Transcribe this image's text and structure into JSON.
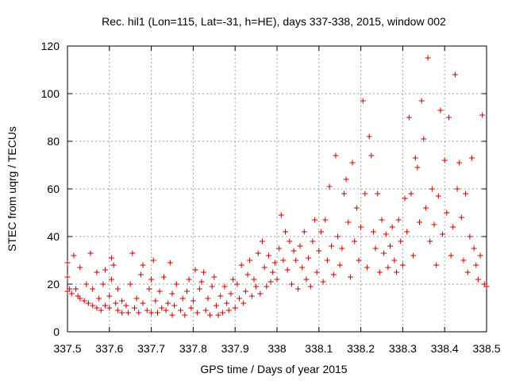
{
  "chart_data": {
    "type": "scatter",
    "title": "Rec. hil1 (Lon=115, Lat=-31, h=HE), days 337-338, 2015, window 002",
    "xlabel": "GPS time / Days of year 2015",
    "ylabel": "STEC from uqrg / TECUs",
    "xlim": [
      337.5,
      338.5
    ],
    "ylim": [
      0,
      120
    ],
    "xticks": [
      337.5,
      337.6,
      337.7,
      337.8,
      337.9,
      338.0,
      338.1,
      338.2,
      338.3,
      338.4,
      338.5
    ],
    "xtick_labels": [
      "337.5",
      "337.6",
      "337.7",
      "337.8",
      "337.9",
      "338",
      "338.1",
      "338.2",
      "338.3",
      "338.4",
      "338.5"
    ],
    "yticks": [
      0,
      20,
      40,
      60,
      80,
      100,
      120
    ],
    "ytick_labels": [
      "0",
      "20",
      "40",
      "60",
      "80",
      "100",
      "120"
    ],
    "grid": true,
    "marker": "plus",
    "color": "#cc0000",
    "points": [
      [
        337.5,
        17
      ],
      [
        337.5,
        23
      ],
      [
        337.5,
        29
      ],
      [
        337.505,
        18
      ],
      [
        337.51,
        16
      ],
      [
        337.515,
        32
      ],
      [
        337.52,
        18
      ],
      [
        337.525,
        15
      ],
      [
        337.53,
        14
      ],
      [
        337.53,
        27
      ],
      [
        337.54,
        13
      ],
      [
        337.545,
        20
      ],
      [
        337.55,
        12
      ],
      [
        337.555,
        33
      ],
      [
        337.56,
        18
      ],
      [
        337.56,
        11
      ],
      [
        337.57,
        25
      ],
      [
        337.57,
        10
      ],
      [
        337.575,
        14
      ],
      [
        337.58,
        9
      ],
      [
        337.585,
        20
      ],
      [
        337.59,
        26
      ],
      [
        337.59,
        11
      ],
      [
        337.6,
        10
      ],
      [
        337.6,
        15
      ],
      [
        337.605,
        22
      ],
      [
        337.605,
        31
      ],
      [
        337.61,
        28
      ],
      [
        337.615,
        12
      ],
      [
        337.62,
        9
      ],
      [
        337.62,
        18
      ],
      [
        337.63,
        8
      ],
      [
        337.63,
        13
      ],
      [
        337.64,
        11
      ],
      [
        337.645,
        8
      ],
      [
        337.65,
        20
      ],
      [
        337.655,
        33
      ],
      [
        337.66,
        10
      ],
      [
        337.665,
        14
      ],
      [
        337.67,
        8
      ],
      [
        337.675,
        24
      ],
      [
        337.68,
        28
      ],
      [
        337.68,
        12
      ],
      [
        337.69,
        9
      ],
      [
        337.695,
        18
      ],
      [
        337.7,
        22
      ],
      [
        337.7,
        8
      ],
      [
        337.705,
        30
      ],
      [
        337.71,
        13
      ],
      [
        337.715,
        8
      ],
      [
        337.72,
        17
      ],
      [
        337.725,
        10
      ],
      [
        337.73,
        23
      ],
      [
        337.735,
        9
      ],
      [
        337.74,
        12
      ],
      [
        337.745,
        29
      ],
      [
        337.75,
        7
      ],
      [
        337.75,
        16
      ],
      [
        337.755,
        11
      ],
      [
        337.76,
        20
      ],
      [
        337.77,
        9
      ],
      [
        337.775,
        14
      ],
      [
        337.78,
        7
      ],
      [
        337.785,
        17
      ],
      [
        337.79,
        22
      ],
      [
        337.795,
        10
      ],
      [
        337.8,
        13
      ],
      [
        337.805,
        26
      ],
      [
        337.81,
        8
      ],
      [
        337.815,
        18
      ],
      [
        337.82,
        21
      ],
      [
        337.825,
        25
      ],
      [
        337.83,
        9
      ],
      [
        337.835,
        14
      ],
      [
        337.84,
        7
      ],
      [
        337.845,
        19
      ],
      [
        337.85,
        23
      ],
      [
        337.855,
        11
      ],
      [
        337.86,
        7
      ],
      [
        337.865,
        15
      ],
      [
        337.87,
        8
      ],
      [
        337.875,
        19
      ],
      [
        337.88,
        12
      ],
      [
        337.885,
        9
      ],
      [
        337.89,
        16
      ],
      [
        337.895,
        22
      ],
      [
        337.9,
        10
      ],
      [
        337.905,
        20
      ],
      [
        337.91,
        14
      ],
      [
        337.915,
        28
      ],
      [
        337.92,
        12
      ],
      [
        337.925,
        17
      ],
      [
        337.93,
        24
      ],
      [
        337.935,
        30
      ],
      [
        337.94,
        15
      ],
      [
        337.945,
        22
      ],
      [
        337.95,
        19
      ],
      [
        337.955,
        33
      ],
      [
        337.96,
        16
      ],
      [
        337.965,
        38
      ],
      [
        337.97,
        27
      ],
      [
        337.975,
        19
      ],
      [
        337.98,
        32
      ],
      [
        337.985,
        21
      ],
      [
        337.99,
        25
      ],
      [
        337.995,
        29
      ],
      [
        338.0,
        22
      ],
      [
        338.005,
        35
      ],
      [
        338.01,
        49
      ],
      [
        338.015,
        30
      ],
      [
        338.02,
        42
      ],
      [
        338.025,
        26
      ],
      [
        338.03,
        38
      ],
      [
        338.035,
        20
      ],
      [
        338.04,
        34
      ],
      [
        338.045,
        30
      ],
      [
        338.05,
        18
      ],
      [
        338.055,
        36
      ],
      [
        338.06,
        27
      ],
      [
        338.065,
        42
      ],
      [
        338.07,
        22
      ],
      [
        338.075,
        31
      ],
      [
        338.08,
        19
      ],
      [
        338.085,
        38
      ],
      [
        338.09,
        47
      ],
      [
        338.095,
        25
      ],
      [
        338.1,
        34
      ],
      [
        338.105,
        42
      ],
      [
        338.11,
        21
      ],
      [
        338.115,
        47
      ],
      [
        338.12,
        30
      ],
      [
        338.125,
        61
      ],
      [
        338.13,
        36
      ],
      [
        338.135,
        24
      ],
      [
        338.14,
        74
      ],
      [
        338.145,
        40
      ],
      [
        338.15,
        28
      ],
      [
        338.155,
        35
      ],
      [
        338.16,
        58
      ],
      [
        338.165,
        64
      ],
      [
        338.17,
        46
      ],
      [
        338.175,
        23
      ],
      [
        338.18,
        71
      ],
      [
        338.185,
        38
      ],
      [
        338.19,
        52
      ],
      [
        338.195,
        30
      ],
      [
        338.2,
        44
      ],
      [
        338.205,
        97
      ],
      [
        338.21,
        58
      ],
      [
        338.215,
        27
      ],
      [
        338.22,
        82
      ],
      [
        338.225,
        74
      ],
      [
        338.23,
        42
      ],
      [
        338.235,
        35
      ],
      [
        338.24,
        58
      ],
      [
        338.245,
        25
      ],
      [
        338.25,
        47
      ],
      [
        338.255,
        33
      ],
      [
        338.26,
        41
      ],
      [
        338.265,
        27
      ],
      [
        338.27,
        36
      ],
      [
        338.275,
        44
      ],
      [
        338.28,
        30
      ],
      [
        338.285,
        25
      ],
      [
        338.29,
        47
      ],
      [
        338.295,
        38
      ],
      [
        338.3,
        28
      ],
      [
        338.305,
        56
      ],
      [
        338.31,
        42
      ],
      [
        338.315,
        90
      ],
      [
        338.32,
        58
      ],
      [
        338.325,
        32
      ],
      [
        338.33,
        73
      ],
      [
        338.335,
        69
      ],
      [
        338.34,
        46
      ],
      [
        338.345,
        97
      ],
      [
        338.35,
        81
      ],
      [
        338.355,
        52
      ],
      [
        338.36,
        115
      ],
      [
        338.365,
        38
      ],
      [
        338.37,
        60
      ],
      [
        338.375,
        45
      ],
      [
        338.38,
        28
      ],
      [
        338.385,
        57
      ],
      [
        338.39,
        93
      ],
      [
        338.395,
        41
      ],
      [
        338.4,
        72
      ],
      [
        338.405,
        50
      ],
      [
        338.41,
        90
      ],
      [
        338.415,
        32
      ],
      [
        338.42,
        44
      ],
      [
        338.425,
        108
      ],
      [
        338.43,
        60
      ],
      [
        338.435,
        71
      ],
      [
        338.44,
        48
      ],
      [
        338.445,
        30
      ],
      [
        338.45,
        58
      ],
      [
        338.455,
        25
      ],
      [
        338.46,
        40
      ],
      [
        338.465,
        73
      ],
      [
        338.47,
        35
      ],
      [
        338.475,
        28
      ],
      [
        338.48,
        22
      ],
      [
        338.485,
        32
      ],
      [
        338.49,
        91
      ],
      [
        338.495,
        20
      ],
      [
        338.5,
        19
      ]
    ]
  }
}
